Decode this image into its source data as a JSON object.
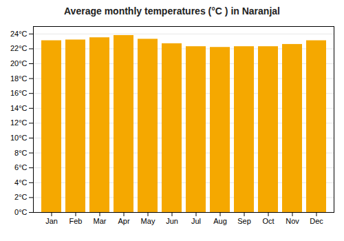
{
  "chart_data": {
    "type": "bar",
    "title": "Average monthly temperatures (°C ) in Naranjal",
    "categories": [
      "Jan",
      "Feb",
      "Mar",
      "Apr",
      "May",
      "Jun",
      "Jul",
      "Aug",
      "Sep",
      "Oct",
      "Nov",
      "Dec"
    ],
    "values": [
      23.1,
      23.2,
      23.5,
      23.8,
      23.3,
      22.7,
      22.3,
      22.2,
      22.3,
      22.3,
      22.6,
      23.1
    ],
    "color": "#F5A800",
    "ylim": [
      0,
      25
    ],
    "yticks": [
      {
        "value": 0,
        "label": "0°C"
      },
      {
        "value": 2,
        "label": "2°C"
      },
      {
        "value": 4,
        "label": "4°C"
      },
      {
        "value": 6,
        "label": "6°C"
      },
      {
        "value": 8,
        "label": "8°C"
      },
      {
        "value": 10,
        "label": "10°C"
      },
      {
        "value": 12,
        "label": "12°C"
      },
      {
        "value": 14,
        "label": "14°C"
      },
      {
        "value": 16,
        "label": "16°C"
      },
      {
        "value": 18,
        "label": "18°C"
      },
      {
        "value": 20,
        "label": "20°C"
      },
      {
        "value": 22,
        "label": "22°C"
      },
      {
        "value": 24,
        "label": "24°C"
      }
    ],
    "grid": true
  }
}
